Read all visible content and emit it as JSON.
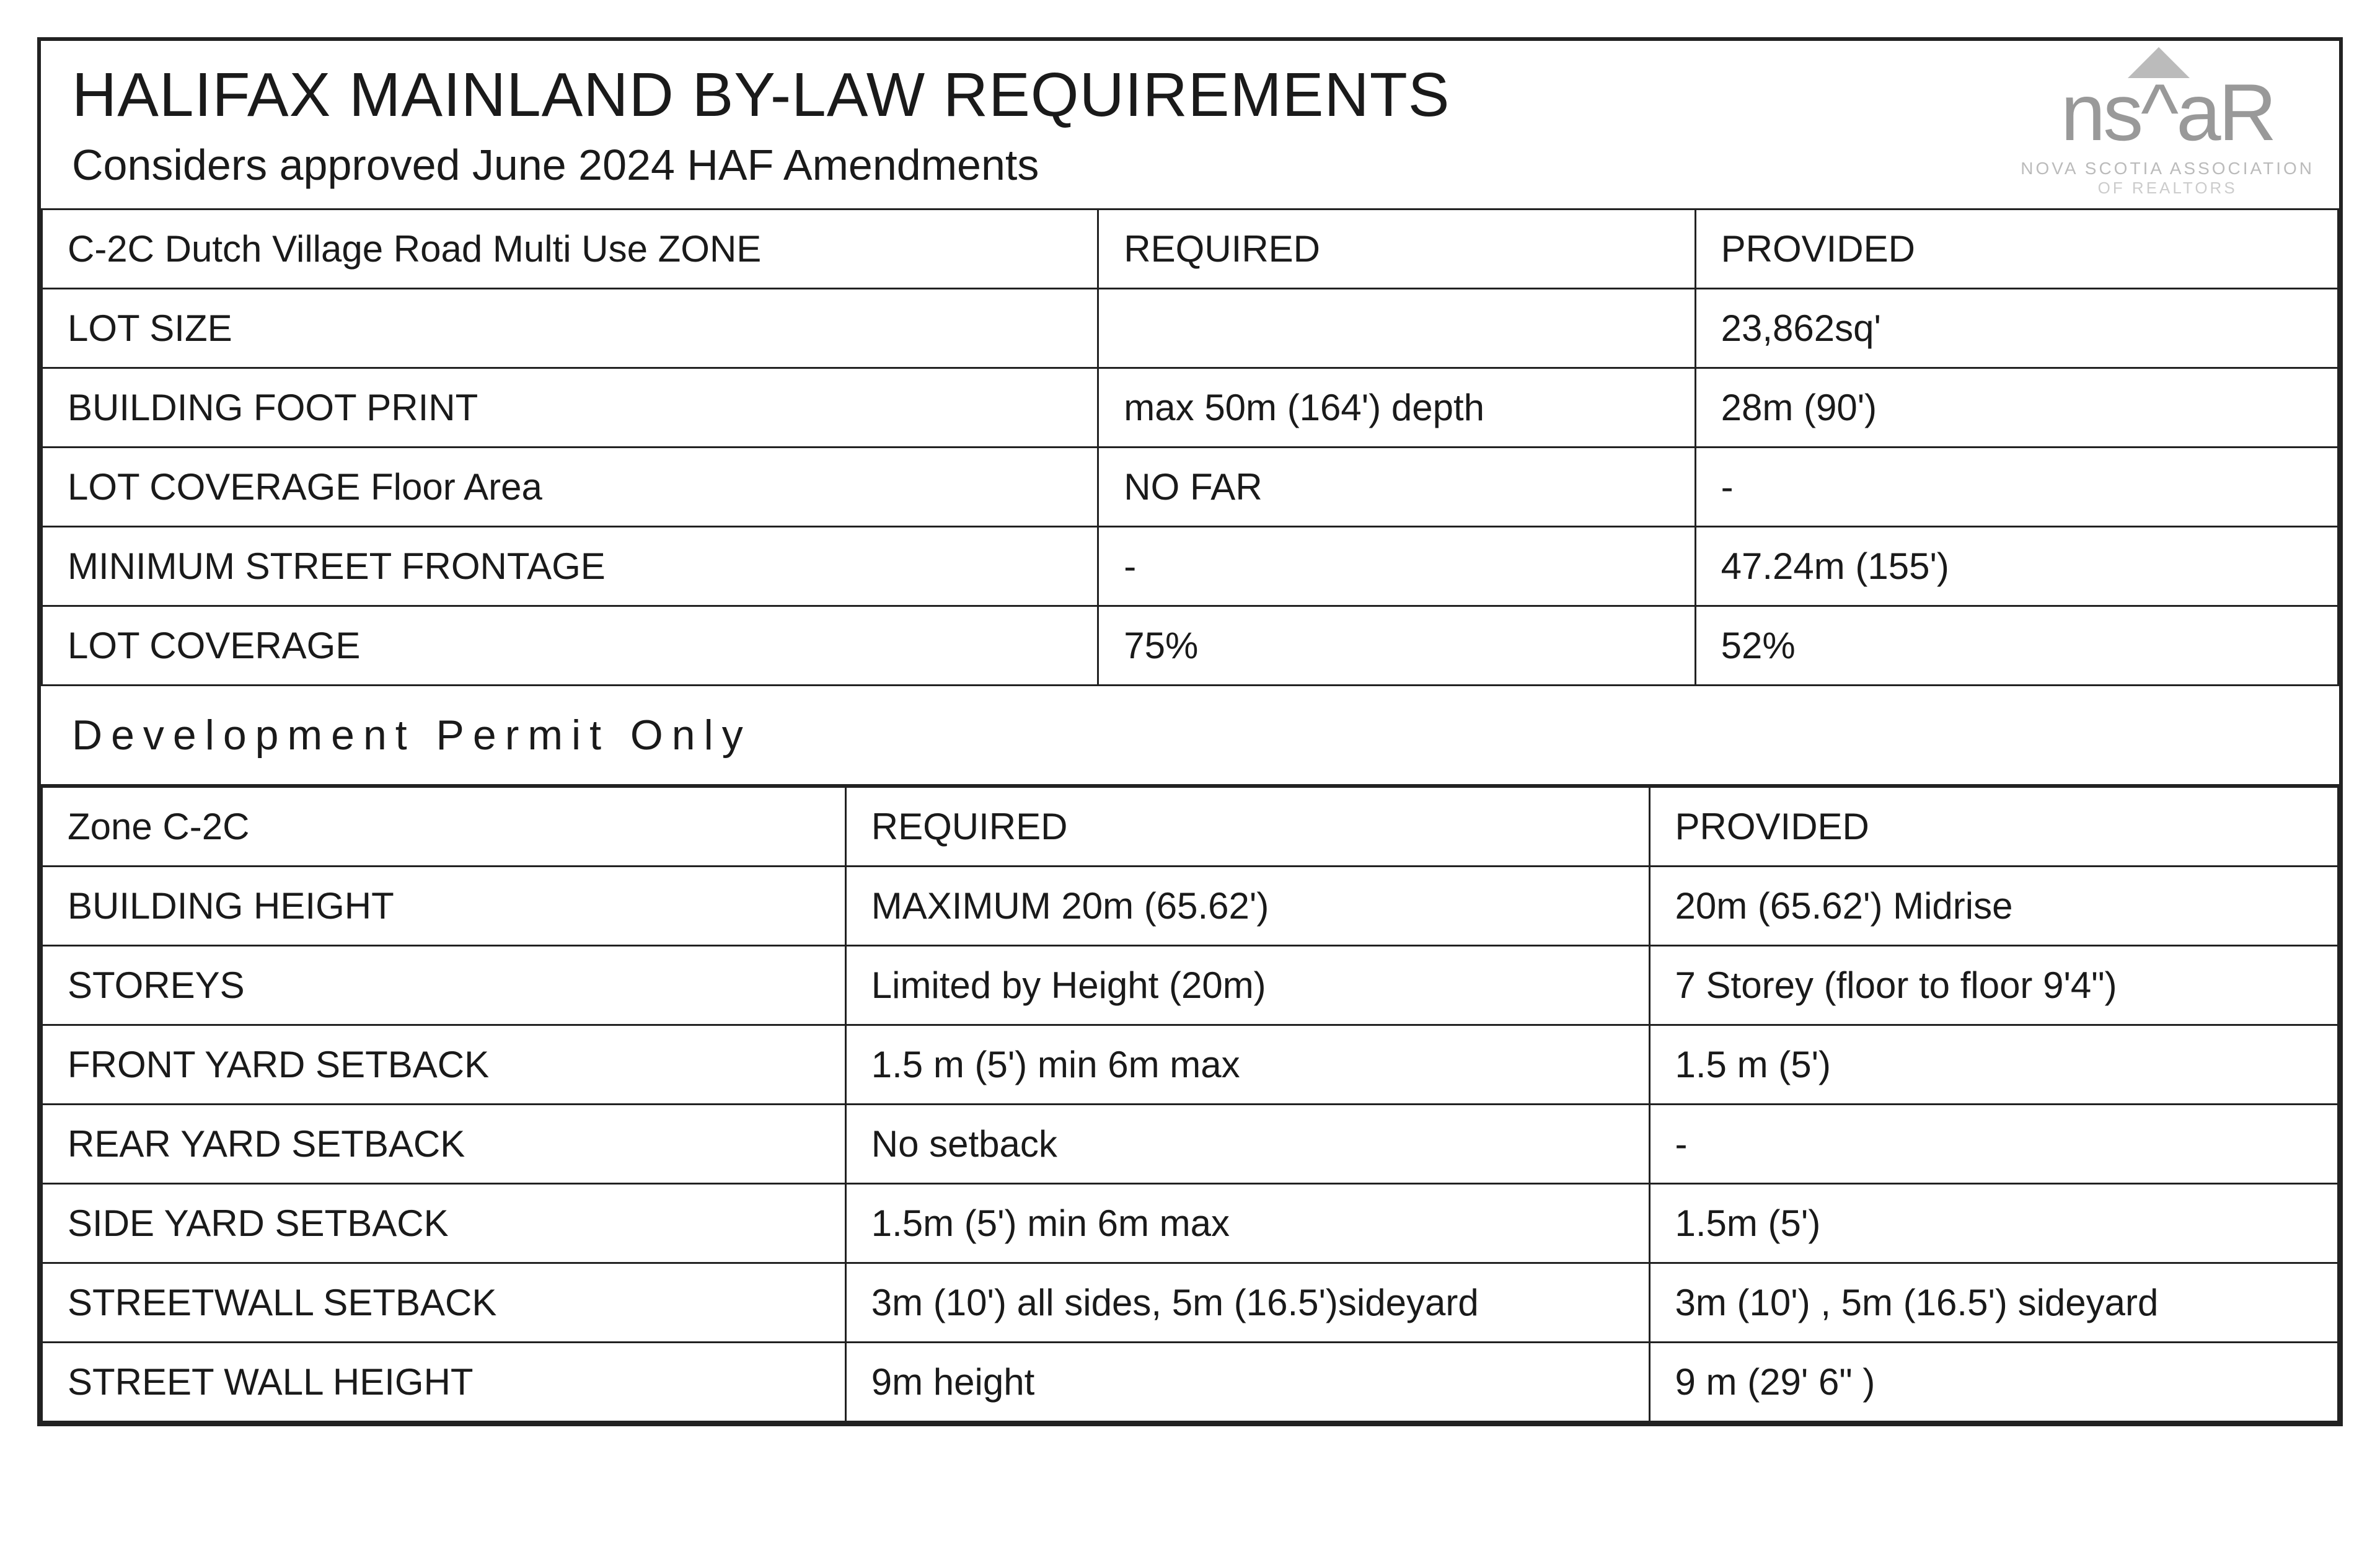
{
  "header": {
    "title": "HALIFAX MAINLAND BY-LAW REQUIREMENTS",
    "subtitle": "Considers approved June 2024 HAF Amendments",
    "logo_text": "ns",
    "logo_text2": "aR",
    "logo_sub": "NOVA SCOTIA ASSOCIATION",
    "logo_sub2": "OF REALTORS"
  },
  "table1": {
    "head": {
      "zone": "C-2C Dutch Village Road Multi Use  ZONE",
      "required": "REQUIRED",
      "provided": "PROVIDED"
    },
    "rows": [
      {
        "label": "LOT SIZE",
        "required": "",
        "provided": "23,862sq'"
      },
      {
        "label": "BUILDING FOOT PRINT",
        "required": "max 50m (164') depth",
        "provided": "28m (90')"
      },
      {
        "label": "LOT COVERAGE Floor Area",
        "required": "NO FAR",
        "provided": "-"
      },
      {
        "label": "MINIMUM STREET FRONTAGE",
        "required": "-",
        "provided": "47.24m (155')"
      },
      {
        "label": "LOT COVERAGE",
        "required": "75%",
        "provided": "52%"
      }
    ]
  },
  "section_heading": "Development Permit Only",
  "table2": {
    "head": {
      "zone": "Zone C-2C",
      "required": "REQUIRED",
      "provided": "PROVIDED"
    },
    "rows": [
      {
        "label": "BUILDING HEIGHT",
        "required": "MAXIMUM 20m (65.62')",
        "provided": "20m  (65.62')  Midrise"
      },
      {
        "label": "STOREYS",
        "required": "Limited by Height (20m)",
        "provided": "7  Storey  (floor to floor 9'4\")"
      },
      {
        "label": "FRONT YARD  SETBACK",
        "required": "1.5 m (5')  min  6m max",
        "provided": "1.5 m (5')"
      },
      {
        "label": "REAR YARD SETBACK",
        "required": "No setback",
        "provided": "-"
      },
      {
        "label": "SIDE YARD SETBACK",
        "required": "1.5m (5')  min 6m max",
        "provided": "1.5m (5')"
      },
      {
        "label": "STREETWALL SETBACK",
        "required": "3m (10') all sides, 5m (16.5')sideyard",
        "provided": "3m (10') , 5m (16.5') sideyard"
      },
      {
        "label": "STREET WALL HEIGHT",
        "required": "9m height",
        "provided": "9 m (29' 6\" )"
      }
    ]
  }
}
